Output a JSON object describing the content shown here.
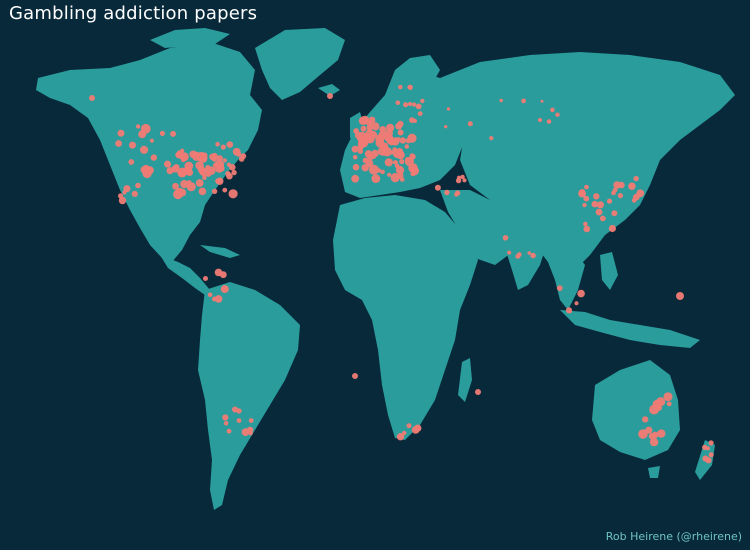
{
  "title": "Gambling addiction papers",
  "credit": "Rob Heirene (@rheirene)",
  "colors": {
    "background": "#08293a",
    "land": "#2a9c9c",
    "points": "#f07b74",
    "credit": "#6fc3c6"
  },
  "map": {
    "projection": "world",
    "point_layer": "paper locations"
  }
}
